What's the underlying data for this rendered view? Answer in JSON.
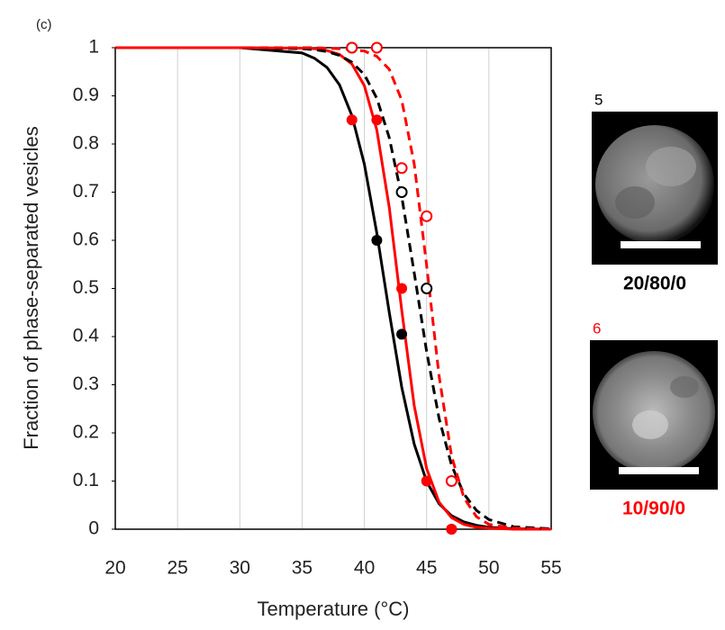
{
  "chart_data": {
    "type": "line",
    "panel_label": "(c)",
    "x_label": "Temperature (°C)",
    "y_label": "Fraction of phase-separated vesicles",
    "xlim": [
      20,
      55
    ],
    "xticks": [
      20,
      25,
      30,
      35,
      40,
      45,
      50,
      55
    ],
    "ylim": [
      0,
      1
    ],
    "yticks": [
      0,
      0.1,
      0.2,
      0.3,
      0.4,
      0.5,
      0.6,
      0.7,
      0.8,
      0.9,
      1
    ],
    "grid": true,
    "x": [
      20,
      25,
      30,
      35,
      36,
      37,
      38,
      39,
      40,
      41,
      42,
      43,
      44,
      45,
      46,
      47,
      48,
      49,
      50,
      52,
      55
    ],
    "series": [
      {
        "color": "#000000",
        "dash": "solid",
        "values": [
          1,
          1,
          1,
          0.989,
          0.978,
          0.959,
          0.923,
          0.859,
          0.758,
          0.615,
          0.45,
          0.295,
          0.177,
          0.099,
          0.053,
          0.028,
          0.015,
          0.008,
          0.004,
          0.001,
          0
        ]
      },
      {
        "color": "#ff0000",
        "dash": "solid",
        "values": [
          1,
          1,
          1,
          0.999,
          0.998,
          0.994,
          0.986,
          0.966,
          0.921,
          0.829,
          0.668,
          0.455,
          0.257,
          0.126,
          0.056,
          0.024,
          0.01,
          0.004,
          0.002,
          0,
          0
        ]
      },
      {
        "color": "#000000",
        "dash": "dashed",
        "values": [
          1,
          1,
          1,
          0.998,
          0.996,
          0.992,
          0.984,
          0.97,
          0.944,
          0.895,
          0.813,
          0.691,
          0.533,
          0.369,
          0.23,
          0.133,
          0.073,
          0.039,
          0.02,
          0.005,
          0.001
        ]
      },
      {
        "color": "#ff0000",
        "dash": "dashed",
        "values": [
          1,
          1,
          1,
          1,
          1,
          0.999,
          0.998,
          0.996,
          0.993,
          0.982,
          0.955,
          0.891,
          0.759,
          0.548,
          0.318,
          0.152,
          0.065,
          0.026,
          0.01,
          0.002,
          0
        ]
      }
    ],
    "points": [
      {
        "color": "#000000",
        "filled": false,
        "x": [
          39,
          43,
          45
        ],
        "values": [
          1,
          0.7,
          0.5
        ]
      },
      {
        "color": "#000000",
        "filled": true,
        "x": [
          41,
          43,
          47
        ],
        "values": [
          0.6,
          0.405,
          0
        ]
      },
      {
        "color": "#ff0000",
        "filled": false,
        "x": [
          39,
          41,
          43,
          45,
          47
        ],
        "values": [
          1,
          1,
          0.75,
          0.65,
          0.1
        ]
      },
      {
        "color": "#ff0000",
        "filled": true,
        "x": [
          39,
          41,
          43,
          45,
          47
        ],
        "values": [
          0.85,
          0.85,
          0.5,
          0.1,
          0
        ]
      }
    ]
  },
  "panels": [
    {
      "number": "5",
      "label": "20/80/0",
      "color": "#000000"
    },
    {
      "number": "6",
      "label": "10/90/0",
      "color": "#ff0000"
    }
  ]
}
